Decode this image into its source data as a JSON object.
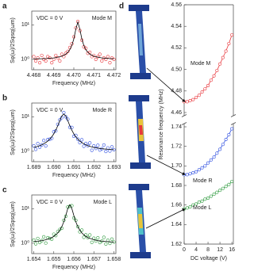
{
  "chart_data": [
    {
      "label": "a",
      "type": "scatter",
      "condition": "VDC = 0 V",
      "annotation": "Mode M",
      "xlabel": "Frequency (MHz)",
      "ylabel": "Sφ(ω)/2Sφsq(ωm)",
      "log_y": true,
      "x": [
        4.468,
        4.4681,
        4.4682,
        4.4683,
        4.4684,
        4.4685,
        4.4686,
        4.4687,
        4.4688,
        4.4689,
        4.469,
        4.4691,
        4.4692,
        4.4693,
        4.4694,
        4.4695,
        4.4696,
        4.4697,
        4.4698,
        4.4699,
        4.47,
        4.4701,
        4.4702,
        4.4703,
        4.4704,
        4.4705,
        4.4706,
        4.4707,
        4.4708,
        4.4709,
        4.471,
        4.4711,
        4.4712,
        4.4713,
        4.4714,
        4.4715,
        4.4716,
        4.4717,
        4.4718,
        4.4719,
        4.472
      ],
      "xlim": [
        4.4679,
        4.4721
      ],
      "xticks": [
        4.468,
        4.469,
        {
          "value": 4.47,
          "label": "4.470"
        },
        4.471,
        4.472
      ],
      "ylim": [
        0.5,
        25
      ],
      "yticks": [
        {
          "value": 1,
          "label": "10⁰"
        },
        {
          "value": 10,
          "label": "10¹"
        }
      ],
      "series": [
        {
          "type": "scatter",
          "color": "#e8373c",
          "values": [
            1.2,
            0.9,
            1.1,
            0.8,
            1.3,
            1.0,
            0.9,
            1.2,
            1.1,
            0.8,
            1.0,
            1.3,
            1.1,
            0.9,
            1.4,
            1.2,
            1.5,
            1.7,
            2.2,
            2.8,
            4.5,
            8.1,
            12.5,
            6.8,
            3.6,
            2.3,
            2.1,
            1.5,
            1.6,
            1.2,
            1.3,
            1.0,
            1.2,
            1.4,
            0.9,
            1.1,
            1.0,
            1.2,
            0.8,
            1.1,
            1.0
          ]
        },
        {
          "type": "line",
          "color": "#000000",
          "values": [
            1.03,
            1.03,
            1.04,
            1.04,
            1.04,
            1.05,
            1.05,
            1.07,
            1.08,
            1.09,
            1.1,
            1.13,
            1.16,
            1.19,
            1.24,
            1.31,
            1.42,
            1.6,
            1.91,
            2.52,
            3.91,
            7.49,
            12,
            7.49,
            3.91,
            2.52,
            1.91,
            1.6,
            1.42,
            1.31,
            1.24,
            1.19,
            1.16,
            1.13,
            1.1,
            1.09,
            1.08,
            1.07,
            1.05,
            1.05,
            1.04
          ]
        }
      ]
    },
    {
      "label": "b",
      "type": "scatter",
      "condition": "VDC = 0 V",
      "annotation": "Mode R",
      "xlabel": "Frequency (MHz)",
      "ylabel": "Sφ(ω)/2Sφsq(ωm)",
      "log_y": true,
      "x": [
        1.689,
        1.6891,
        1.6892,
        1.6893,
        1.6894,
        1.6895,
        1.6896,
        1.6897,
        1.6898,
        1.6899,
        1.69,
        1.6901,
        1.6902,
        1.6903,
        1.6904,
        1.6905,
        1.6906,
        1.6907,
        1.6908,
        1.6909,
        1.691,
        1.6911,
        1.6912,
        1.6913,
        1.6914,
        1.6915,
        1.6916,
        1.6917,
        1.6918,
        1.6919,
        1.692,
        1.6921,
        1.6922,
        1.6923,
        1.6924,
        1.6925,
        1.6926,
        1.6927,
        1.6928,
        1.6929,
        1.693
      ],
      "xlim": [
        1.6889,
        1.6931
      ],
      "xticks": [
        1.689,
        {
          "value": 1.69,
          "label": "1.690"
        },
        1.691,
        1.692,
        1.693
      ],
      "ylim": [
        0.5,
        25
      ],
      "yticks": [
        {
          "value": 1,
          "label": "10⁰"
        },
        {
          "value": 10,
          "label": "10¹"
        }
      ],
      "series": [
        {
          "type": "scatter",
          "color": "#2f4fe0",
          "values": [
            1.43,
            1.14,
            1.67,
            1.31,
            1.54,
            2.06,
            1.43,
            2.18,
            2.24,
            2.37,
            3.68,
            3.89,
            6.06,
            8.1,
            9.43,
            13.2,
            9.96,
            8.48,
            4.96,
            4.91,
            2.72,
            2.89,
            2.24,
            1.78,
            2.15,
            1.4,
            1.69,
            1.46,
            1.74,
            1.07,
            1.43,
            1.21,
            1.49,
            1.09,
            1.19,
            1.52,
            0.99,
            1.25,
            1.02,
            1.34,
            1.11
          ]
        },
        {
          "type": "line",
          "color": "#000000",
          "values": [
            1.3,
            1.34,
            1.39,
            1.46,
            1.54,
            1.65,
            1.79,
            1.98,
            2.24,
            2.63,
            3.2,
            4.09,
            5.51,
            7.71,
            10.48,
            12,
            10.48,
            7.71,
            5.51,
            4.09,
            3.2,
            2.63,
            2.24,
            1.98,
            1.79,
            1.65,
            1.54,
            1.46,
            1.39,
            1.34,
            1.3,
            1.27,
            1.24,
            1.21,
            1.19,
            1.17,
            1.16,
            1.14,
            1.13,
            1.12,
            1.11
          ]
        }
      ]
    },
    {
      "label": "c",
      "type": "scatter",
      "condition": "VDC = 0 V",
      "annotation": "Mode L",
      "xlabel": "Frequency (MHz)",
      "ylabel": "Sφ(ω)/2Sφsq(ωm)",
      "log_y": true,
      "x": [
        1.654,
        1.6541,
        1.6542,
        1.6543,
        1.6544,
        1.6545,
        1.6546,
        1.6547,
        1.6548,
        1.6549,
        1.655,
        1.6551,
        1.6552,
        1.6553,
        1.6554,
        1.6555,
        1.6556,
        1.6557,
        1.6558,
        1.6559,
        1.656,
        1.6561,
        1.6562,
        1.6563,
        1.6564,
        1.6565,
        1.6566,
        1.6567,
        1.6568,
        1.6569,
        1.657,
        1.6571,
        1.6572,
        1.6573,
        1.6574,
        1.6575,
        1.6576,
        1.6577,
        1.6578,
        1.6579,
        1.658
      ],
      "xlim": [
        1.6539,
        1.6581
      ],
      "xticks": [
        1.654,
        1.655,
        1.656,
        1.657,
        1.658
      ],
      "ylim": [
        0.5,
        25
      ],
      "yticks": [
        {
          "value": 1,
          "label": "10⁰"
        },
        {
          "value": 10,
          "label": "10¹"
        }
      ],
      "series": [
        {
          "type": "scatter",
          "color": "#2e9a3e",
          "values": [
            1.23,
            0.96,
            1.37,
            1.05,
            1.19,
            1.53,
            1.01,
            1.44,
            1.38,
            1.31,
            1.82,
            1.66,
            2.19,
            2.5,
            2.72,
            4.59,
            6.05,
            11.19,
            11.7,
            12.2,
            5.41,
            4.59,
            3.02,
            2.14,
            2.39,
            1.49,
            1.74,
            1.46,
            1.73,
            1.06,
            1.39,
            1.16,
            1.43,
            1.05,
            1.15,
            1.48,
            0.95,
            1.22,
            0.99,
            1.31,
            1.08
          ]
        },
        {
          "type": "line",
          "color": "#000000",
          "values": [
            1.12,
            1.13,
            1.14,
            1.17,
            1.19,
            1.22,
            1.26,
            1.31,
            1.38,
            1.46,
            1.58,
            1.75,
            1.99,
            2.38,
            3.02,
            4.17,
            6.37,
            10.17,
            13,
            10.17,
            6.37,
            4.17,
            3.02,
            2.38,
            1.99,
            1.75,
            1.58,
            1.46,
            1.38,
            1.33,
            1.26,
            1.22,
            1.19,
            1.17,
            1.15,
            1.14,
            1.12,
            1.11,
            1.1,
            1.09,
            1.08
          ]
        }
      ]
    },
    {
      "label": "d",
      "type": "line",
      "xlabel": "DC voltage (V)",
      "ylabel": "Resonance frequency (MHz)",
      "x": [
        0,
        1,
        2,
        3,
        4,
        5,
        6,
        7,
        8,
        9,
        10,
        11,
        12,
        13,
        14,
        15,
        16
      ],
      "xlim": [
        0,
        16.5
      ],
      "xticks": [
        0,
        4,
        8,
        12,
        16
      ],
      "ylim": [
        1.62,
        1.74
      ],
      "yticks": [
        1.62,
        1.64,
        1.66,
        1.68,
        {
          "value": 1.7,
          "label": "1.70"
        },
        1.72,
        1.74
      ],
      "y2lim": [
        4.46,
        4.56
      ],
      "y2ticks": [
        4.46,
        4.48,
        {
          "value": 4.5,
          "label": "4.50"
        },
        4.52,
        4.54,
        4.56
      ],
      "series": [
        {
          "name": "Mode M",
          "axis": "y2",
          "color": "#e8373c",
          "values": [
            4.47,
            4.47,
            4.471,
            4.472,
            4.474,
            4.476,
            4.479,
            4.482,
            4.485,
            4.49,
            4.494,
            4.499,
            4.505,
            4.511,
            4.517,
            4.524,
            4.532
          ]
        },
        {
          "name": "Mode R",
          "color": "#2f4fe0",
          "values": [
            1.691,
            1.691,
            1.692,
            1.693,
            1.694,
            1.696,
            1.698,
            1.7,
            1.703,
            1.706,
            1.709,
            1.713,
            1.717,
            1.722,
            1.727,
            1.732,
            1.738
          ]
        },
        {
          "name": "Mode L",
          "color": "#2e9a3e",
          "values": [
            1.656,
            1.657,
            1.658,
            1.66,
            1.661,
            1.663,
            1.664,
            1.666,
            1.667,
            1.669,
            1.671,
            1.673,
            1.675,
            1.677,
            1.679,
            1.681,
            1.684
          ]
        }
      ]
    }
  ]
}
